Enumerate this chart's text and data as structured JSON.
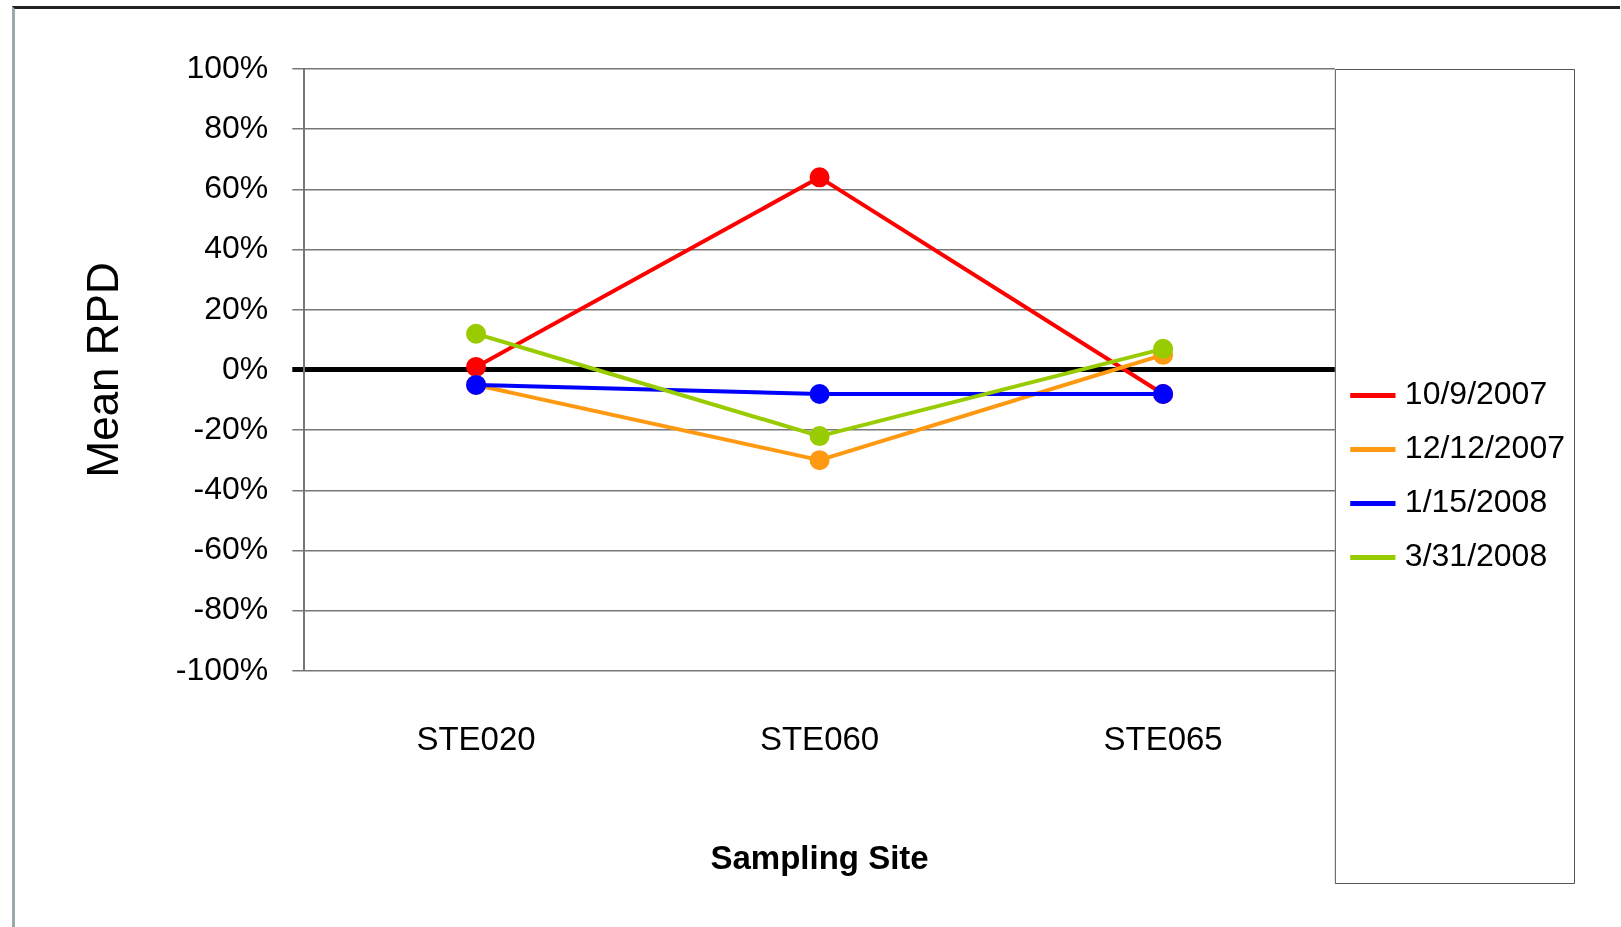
{
  "chart_data": {
    "type": "line",
    "xlabel": "Sampling Site",
    "ylabel": "Mean RPD",
    "categories": [
      "STE020",
      "STE060",
      "STE065"
    ],
    "series": [
      {
        "name": "10/9/2007",
        "color": "#ff0000",
        "values": [
          1,
          64,
          -8
        ]
      },
      {
        "name": "12/12/2007",
        "color": "#ff9912",
        "values": [
          -5,
          -30,
          5
        ]
      },
      {
        "name": "1/15/2008",
        "color": "#0000ff",
        "values": [
          -5,
          -8,
          -8
        ]
      },
      {
        "name": "3/31/2008",
        "color": "#99cc00",
        "values": [
          12,
          -22,
          7
        ]
      }
    ],
    "ylim": [
      -100,
      100
    ],
    "yticks": [
      {
        "value": -100,
        "label": "-100%"
      },
      {
        "value": -80,
        "label": "-80%"
      },
      {
        "value": -60,
        "label": "-60%"
      },
      {
        "value": -40,
        "label": "-40%"
      },
      {
        "value": -20,
        "label": "-20%"
      },
      {
        "value": 0,
        "label": "0%"
      },
      {
        "value": 20,
        "label": "20%"
      },
      {
        "value": 40,
        "label": "40%"
      },
      {
        "value": 60,
        "label": "60%"
      },
      {
        "value": 80,
        "label": "80%"
      },
      {
        "value": 100,
        "label": "100%"
      }
    ],
    "grid": "y",
    "legend": "right",
    "marker": "circle",
    "line_style": "solid"
  }
}
